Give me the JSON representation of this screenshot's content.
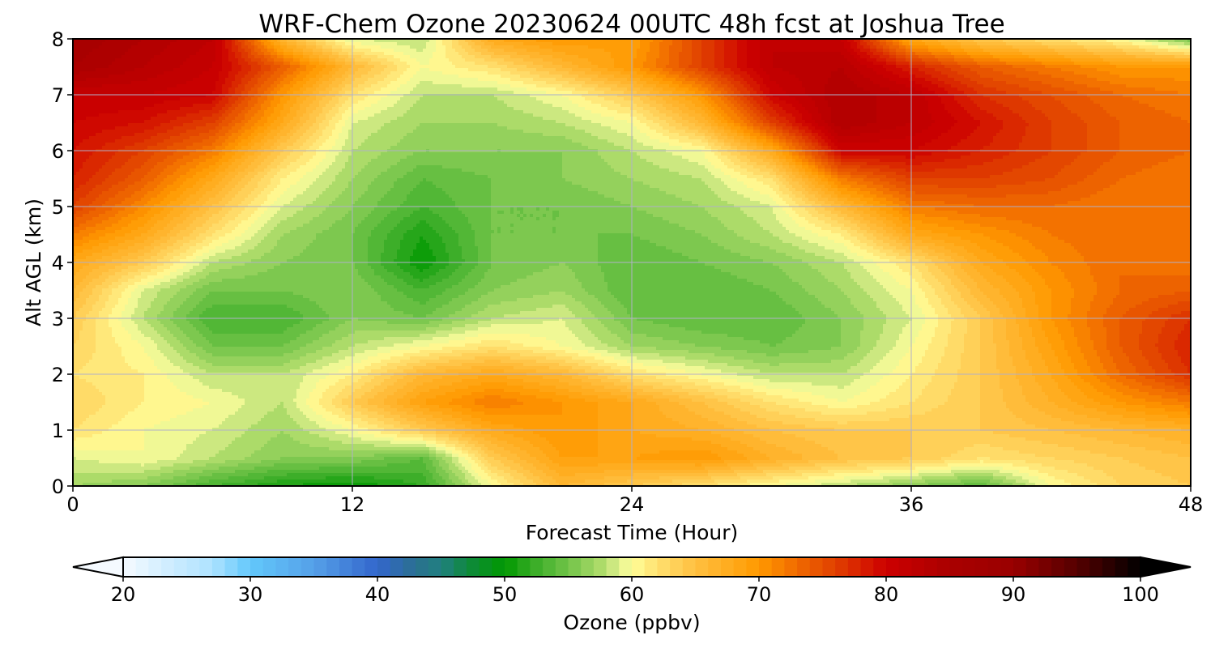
{
  "chart_data": {
    "type": "heatmap",
    "title": "WRF-Chem Ozone  20230624 00UTC 48h fcst at Joshua Tree",
    "xlabel": "Forecast Time (Hour)",
    "ylabel": "Alt AGL (km)",
    "xlim": [
      0,
      48
    ],
    "ylim": [
      0,
      8
    ],
    "xticks": [
      "0",
      "12",
      "24",
      "36",
      "48"
    ],
    "yticks": [
      "0",
      "1",
      "2",
      "3",
      "4",
      "5",
      "6",
      "7",
      "8"
    ],
    "grid": true,
    "x_hours": [
      0,
      3,
      6,
      9,
      12,
      15,
      18,
      21,
      24,
      27,
      30,
      33,
      36,
      39,
      42,
      45,
      48
    ],
    "y_km": [
      8,
      7.5,
      7,
      6.5,
      6,
      5.5,
      5,
      4.5,
      4,
      3.5,
      3,
      2.5,
      2,
      1.5,
      1,
      0.5,
      0
    ],
    "ozone_ppbv": [
      [
        86,
        84,
        82,
        66,
        59,
        58,
        68,
        70,
        69,
        76,
        82,
        81,
        68,
        64,
        62,
        60,
        55
      ],
      [
        85,
        83,
        81,
        74,
        66,
        60,
        62,
        66,
        70,
        76,
        82,
        83,
        78,
        74,
        72,
        70,
        70
      ],
      [
        81,
        81,
        80,
        70,
        62,
        58,
        58,
        60,
        64,
        70,
        80,
        84,
        82,
        77,
        75,
        73,
        72
      ],
      [
        80,
        79,
        76,
        68,
        59,
        57,
        57,
        58,
        60,
        66,
        76,
        84,
        82,
        79,
        76,
        74,
        73
      ],
      [
        79,
        76,
        72,
        64,
        58,
        56,
        56,
        56,
        58,
        60,
        68,
        80,
        80,
        78,
        76,
        74,
        73
      ],
      [
        78,
        74,
        68,
        61,
        57,
        54,
        55,
        56,
        57,
        58,
        62,
        72,
        76,
        76,
        75,
        73,
        72
      ],
      [
        76,
        71,
        65,
        59,
        56,
        53,
        55,
        55,
        56,
        57,
        59,
        66,
        72,
        73,
        73,
        72,
        72
      ],
      [
        72,
        68,
        62,
        57,
        55,
        51,
        55,
        55,
        55,
        56,
        58,
        61,
        68,
        70,
        72,
        73,
        72
      ],
      [
        68,
        64,
        58,
        56,
        55,
        50,
        55,
        56,
        54,
        55,
        56,
        58,
        62,
        68,
        71,
        73,
        72
      ],
      [
        66,
        59,
        55,
        55,
        56,
        53,
        56,
        57,
        54,
        54,
        55,
        57,
        60,
        66,
        70,
        73,
        74
      ],
      [
        64,
        58,
        53,
        53,
        56,
        55,
        58,
        59,
        55,
        54,
        54,
        56,
        59,
        64,
        70,
        74,
        77
      ],
      [
        63,
        60,
        55,
        55,
        58,
        60,
        62,
        60,
        57,
        56,
        55,
        56,
        60,
        64,
        69,
        74,
        78
      ],
      [
        62,
        61,
        58,
        58,
        61,
        66,
        68,
        66,
        62,
        60,
        58,
        58,
        61,
        64,
        68,
        73,
        77
      ],
      [
        63,
        61,
        60,
        58,
        64,
        69,
        72,
        70,
        68,
        65,
        62,
        60,
        62,
        64,
        67,
        70,
        72
      ],
      [
        62,
        60,
        59,
        57,
        60,
        64,
        68,
        70,
        68,
        67,
        65,
        64,
        64,
        64,
        65,
        66,
        67
      ],
      [
        59,
        60,
        58,
        56,
        56,
        54,
        64,
        69,
        69,
        70,
        67,
        65,
        64,
        62,
        63,
        64,
        65
      ],
      [
        57,
        56,
        53,
        51,
        50,
        52,
        60,
        66,
        64,
        62,
        60,
        58,
        56,
        54,
        60,
        63,
        64
      ]
    ],
    "colorbar": {
      "label": "Ozone  (ppbv)",
      "min": 20,
      "max": 100,
      "step": 1,
      "extend": "both",
      "ticks": [
        "20",
        "30",
        "40",
        "50",
        "60",
        "70",
        "80",
        "90",
        "100"
      ]
    },
    "colors": {
      "grid": "#b0b0c8",
      "anchors": [
        [
          20,
          "#f5faff"
        ],
        [
          23,
          "#d5efff"
        ],
        [
          27,
          "#aee2ff"
        ],
        [
          30,
          "#62c8fb"
        ],
        [
          35,
          "#55a0e8"
        ],
        [
          40,
          "#3366cc"
        ],
        [
          43,
          "#2a7090"
        ],
        [
          45,
          "#208080"
        ],
        [
          47,
          "#108840"
        ],
        [
          50,
          "#009900"
        ],
        [
          52,
          "#33aa22"
        ],
        [
          54,
          "#5cbb3c"
        ],
        [
          56,
          "#88cc55"
        ],
        [
          58,
          "#b8e070"
        ],
        [
          59,
          "#e0f090"
        ],
        [
          60,
          "#ffff99"
        ],
        [
          62,
          "#ffe070"
        ],
        [
          65,
          "#ffc040"
        ],
        [
          70,
          "#ff9900"
        ],
        [
          73,
          "#f06a00"
        ],
        [
          76,
          "#e04000"
        ],
        [
          78,
          "#d82000"
        ],
        [
          80,
          "#cc0000"
        ],
        [
          85,
          "#aa0000"
        ],
        [
          90,
          "#990000"
        ],
        [
          95,
          "#550000"
        ],
        [
          100,
          "#000000"
        ]
      ]
    }
  }
}
